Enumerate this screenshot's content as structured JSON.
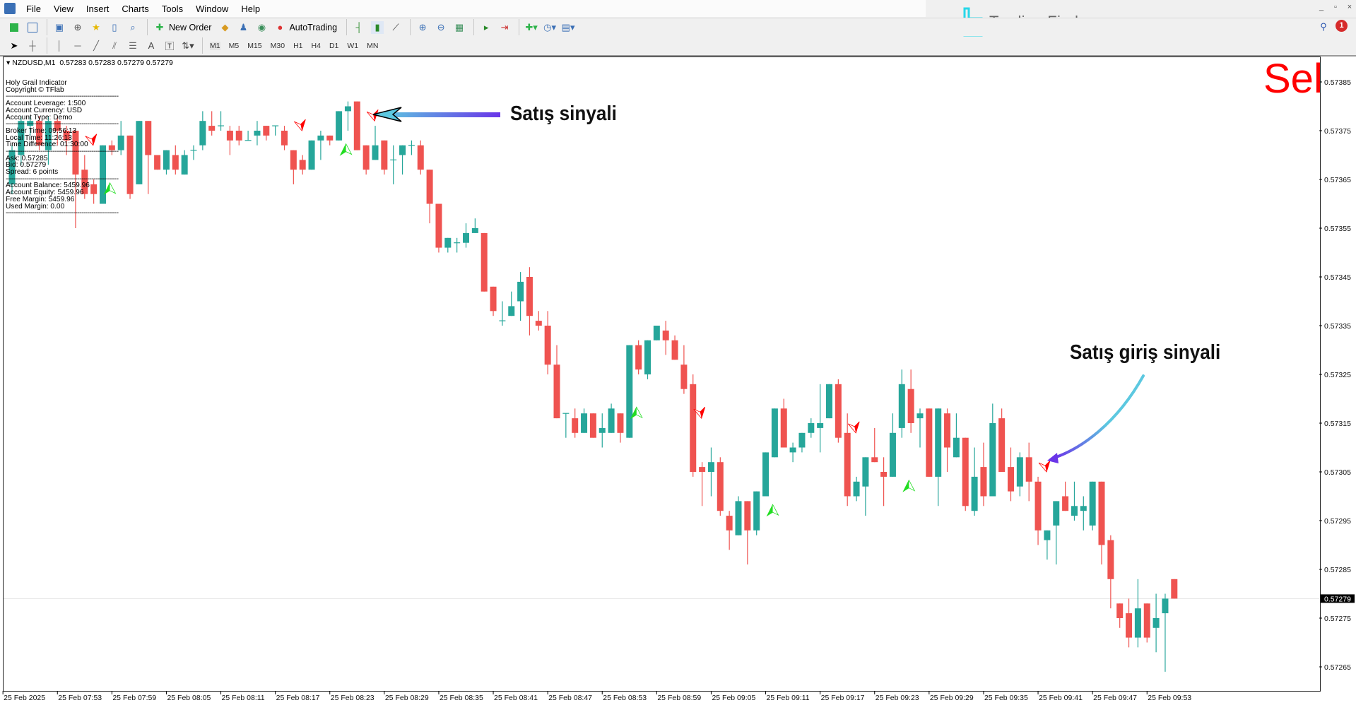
{
  "menu": [
    "File",
    "View",
    "Insert",
    "Charts",
    "Tools",
    "Window",
    "Help"
  ],
  "toolbar": {
    "new_order": "New Order",
    "auto_trading": "AutoTrading",
    "timeframes": [
      "M1",
      "M5",
      "M15",
      "M30",
      "H1",
      "H4",
      "D1",
      "W1",
      "MN"
    ]
  },
  "logo": {
    "text": "Trading Finder",
    "color": "#28d7e8"
  },
  "notifications": {
    "count": "1"
  },
  "window_controls": [
    "_",
    "▫",
    "×"
  ],
  "chart_header": {
    "symbol": "NZDUSD,M1",
    "ohlc": "0.57283 0.57283 0.57279 0.57279"
  },
  "info_panel": {
    "groups": [
      [
        "Holy Grail Indicator",
        "Copyright © TFlab"
      ],
      [
        "Account Leverage: 1:500",
        "Account Currency: USD",
        "Account Type: Demo"
      ],
      [
        "Broker Time: 09:56:13",
        "Local Time: 11:26:13",
        "Time Difference: 01:30:00"
      ],
      [
        "Ask: 0.57285",
        "Bid: 0.57279",
        "Spread: 6 points"
      ],
      [
        "Account Balance: 5459.96",
        "Account Equity: 5459.96",
        "Free Margin: 5459.96",
        "Used Margin: 0.00"
      ]
    ]
  },
  "signal_label": {
    "text": "Sel",
    "color": "#ff0000"
  },
  "annotations": {
    "sell_signal": "Satış sinyali",
    "sell_entry_signal": "Satış giriş sinyali"
  },
  "colors": {
    "bull": "#26a69a",
    "bear": "#ef5350",
    "sell_arrow": "#ff0000",
    "buy_arrow": "#22dd22",
    "arrow_start": "#5cc8e0",
    "arrow_end": "#6a35e8"
  },
  "chart_data": {
    "type": "candlestick",
    "symbol": "NZDUSD",
    "timeframe": "M1",
    "first_time": "25 Feb 07:48",
    "last_time": "25 Feb 09:56",
    "bid": "0.57279",
    "ylim": [
      0.57262,
      0.57392
    ],
    "grid": false,
    "y_ticks": [
      "0.57385",
      "0.57375",
      "0.57365",
      "0.57355",
      "0.57345",
      "0.57335",
      "0.57325",
      "0.57315",
      "0.57305",
      "0.57295",
      "0.57285",
      "0.57275",
      "0.57265"
    ],
    "x_ticks": [
      "25 Feb 2025",
      "25 Feb 07:53",
      "25 Feb 07:59",
      "25 Feb 08:05",
      "25 Feb 08:11",
      "25 Feb 08:17",
      "25 Feb 08:23",
      "25 Feb 08:29",
      "25 Feb 08:35",
      "25 Feb 08:41",
      "25 Feb 08:47",
      "25 Feb 08:53",
      "25 Feb 08:59",
      "25 Feb 09:05",
      "25 Feb 09:11",
      "25 Feb 09:17",
      "25 Feb 09:23",
      "25 Feb 09:29",
      "25 Feb 09:35",
      "25 Feb 09:41",
      "25 Feb 09:47",
      "25 Feb 09:53"
    ],
    "ohlc": [
      [
        0.57364,
        0.57372,
        0.57362,
        0.57371
      ],
      [
        0.5737,
        0.57378,
        0.57368,
        0.57377
      ],
      [
        0.57376,
        0.57378,
        0.57374,
        0.57377
      ],
      [
        0.57377,
        0.57378,
        0.57371,
        0.57372
      ],
      [
        0.57371,
        0.57378,
        0.57368,
        0.57377
      ],
      [
        0.57377,
        0.57378,
        0.57372,
        0.57375
      ],
      [
        0.57375,
        0.57376,
        0.5737,
        0.57373
      ],
      [
        0.57375,
        0.57375,
        0.57355,
        0.57366
      ],
      [
        0.57367,
        0.5737,
        0.57361,
        0.57362
      ],
      [
        0.57364,
        0.57365,
        0.5736,
        0.57362
      ],
      [
        0.5736,
        0.57372,
        0.5736,
        0.57372
      ],
      [
        0.57372,
        0.57373,
        0.5737,
        0.57371
      ],
      [
        0.57371,
        0.57377,
        0.5737,
        0.57374
      ],
      [
        0.57374,
        0.57374,
        0.57361,
        0.57362
      ],
      [
        0.57364,
        0.57377,
        0.57364,
        0.57377
      ],
      [
        0.57377,
        0.57377,
        0.57362,
        0.5737
      ],
      [
        0.5737,
        0.5737,
        0.57367,
        0.57367
      ],
      [
        0.57367,
        0.57371,
        0.57366,
        0.57371
      ],
      [
        0.5737,
        0.57372,
        0.57366,
        0.57367
      ],
      [
        0.57366,
        0.57371,
        0.57366,
        0.5737
      ],
      [
        0.57371,
        0.57372,
        0.57369,
        0.57371
      ],
      [
        0.57372,
        0.57379,
        0.57371,
        0.57377
      ],
      [
        0.57376,
        0.57379,
        0.57374,
        0.57375
      ],
      [
        0.57376,
        0.57379,
        0.57375,
        0.57376
      ],
      [
        0.57375,
        0.57376,
        0.5737,
        0.57373
      ],
      [
        0.57375,
        0.57376,
        0.57372,
        0.57373
      ],
      [
        0.57373,
        0.57375,
        0.57373,
        0.57373
      ],
      [
        0.57374,
        0.57377,
        0.57372,
        0.57375
      ],
      [
        0.57376,
        0.57376,
        0.57373,
        0.57374
      ],
      [
        0.57376,
        0.57376,
        0.57374,
        0.57376
      ],
      [
        0.57375,
        0.57376,
        0.57371,
        0.57372
      ],
      [
        0.57371,
        0.57371,
        0.57364,
        0.57367
      ],
      [
        0.57369,
        0.5737,
        0.57366,
        0.57367
      ],
      [
        0.57367,
        0.57373,
        0.57367,
        0.57373
      ],
      [
        0.57373,
        0.57375,
        0.57369,
        0.57374
      ],
      [
        0.57374,
        0.57374,
        0.57372,
        0.57373
      ],
      [
        0.57373,
        0.57379,
        0.57373,
        0.57379
      ],
      [
        0.57379,
        0.57381,
        0.57375,
        0.5738
      ],
      [
        0.57381,
        0.57381,
        0.57371,
        0.57371
      ],
      [
        0.57372,
        0.57372,
        0.57366,
        0.57367
      ],
      [
        0.57369,
        0.57376,
        0.57369,
        0.57372
      ],
      [
        0.57373,
        0.57373,
        0.57366,
        0.57367
      ],
      [
        0.57369,
        0.57372,
        0.57364,
        0.57369
      ],
      [
        0.5737,
        0.57372,
        0.57366,
        0.57372
      ],
      [
        0.57372,
        0.57373,
        0.5737,
        0.57372
      ],
      [
        0.57372,
        0.57373,
        0.57366,
        0.57367
      ],
      [
        0.57367,
        0.57367,
        0.57356,
        0.5736
      ],
      [
        0.5736,
        0.5736,
        0.5735,
        0.57351
      ],
      [
        0.57351,
        0.57353,
        0.5735,
        0.57353
      ],
      [
        0.57352,
        0.57353,
        0.5735,
        0.57352
      ],
      [
        0.57352,
        0.57356,
        0.57351,
        0.57354
      ],
      [
        0.57354,
        0.57357,
        0.57354,
        0.57355
      ],
      [
        0.57354,
        0.57354,
        0.57342,
        0.57342
      ],
      [
        0.57343,
        0.57343,
        0.57337,
        0.57338
      ],
      [
        0.57336,
        0.5734,
        0.57335,
        0.57336
      ],
      [
        0.57337,
        0.57342,
        0.57337,
        0.57339
      ],
      [
        0.5734,
        0.57346,
        0.57336,
        0.57344
      ],
      [
        0.57345,
        0.57347,
        0.57333,
        0.57337
      ],
      [
        0.57336,
        0.57338,
        0.57334,
        0.57335
      ],
      [
        0.57335,
        0.57338,
        0.57325,
        0.57327
      ],
      [
        0.57327,
        0.57331,
        0.57316,
        0.57316
      ],
      [
        0.57317,
        0.57317,
        0.57312,
        0.57317
      ],
      [
        0.57316,
        0.57318,
        0.57312,
        0.57313
      ],
      [
        0.57313,
        0.57318,
        0.57313,
        0.57317
      ],
      [
        0.57317,
        0.57317,
        0.57312,
        0.57312
      ],
      [
        0.57313,
        0.57317,
        0.5731,
        0.57314
      ],
      [
        0.57313,
        0.57319,
        0.57313,
        0.57318
      ],
      [
        0.57317,
        0.57317,
        0.57311,
        0.57313
      ],
      [
        0.57312,
        0.57331,
        0.57312,
        0.57331
      ],
      [
        0.57331,
        0.57332,
        0.57325,
        0.57326
      ],
      [
        0.57325,
        0.57332,
        0.57324,
        0.57332
      ],
      [
        0.57332,
        0.57335,
        0.57332,
        0.57335
      ],
      [
        0.57334,
        0.57336,
        0.57329,
        0.57332
      ],
      [
        0.57332,
        0.57333,
        0.57328,
        0.57328
      ],
      [
        0.57327,
        0.57331,
        0.57321,
        0.57322
      ],
      [
        0.57323,
        0.57325,
        0.57304,
        0.57305
      ],
      [
        0.57306,
        0.57307,
        0.57298,
        0.57305
      ],
      [
        0.57305,
        0.5731,
        0.573,
        0.57307
      ],
      [
        0.57307,
        0.57308,
        0.57296,
        0.57297
      ],
      [
        0.57296,
        0.57297,
        0.57289,
        0.57293
      ],
      [
        0.57292,
        0.573,
        0.57292,
        0.57299
      ],
      [
        0.57299,
        0.57299,
        0.57286,
        0.57293
      ],
      [
        0.57293,
        0.57301,
        0.57292,
        0.57301
      ],
      [
        0.573,
        0.57309,
        0.573,
        0.57309
      ],
      [
        0.57308,
        0.57318,
        0.57308,
        0.57318
      ],
      [
        0.57318,
        0.5732,
        0.5731,
        0.5731
      ],
      [
        0.57309,
        0.57311,
        0.57307,
        0.5731
      ],
      [
        0.5731,
        0.57313,
        0.57309,
        0.57313
      ],
      [
        0.57313,
        0.57316,
        0.57312,
        0.57315
      ],
      [
        0.57314,
        0.57323,
        0.57309,
        0.57315
      ],
      [
        0.57316,
        0.57323,
        0.57316,
        0.57323
      ],
      [
        0.57323,
        0.57324,
        0.57311,
        0.57312
      ],
      [
        0.57313,
        0.57317,
        0.57298,
        0.573
      ],
      [
        0.573,
        0.57304,
        0.57299,
        0.57303
      ],
      [
        0.57302,
        0.57308,
        0.57296,
        0.57308
      ],
      [
        0.57308,
        0.57314,
        0.57307,
        0.57307
      ],
      [
        0.57305,
        0.57308,
        0.57298,
        0.57304
      ],
      [
        0.57304,
        0.57317,
        0.57304,
        0.57313
      ],
      [
        0.57314,
        0.57326,
        0.57312,
        0.57323
      ],
      [
        0.57322,
        0.57326,
        0.57313,
        0.57315
      ],
      [
        0.57316,
        0.57318,
        0.5731,
        0.57317
      ],
      [
        0.57318,
        0.57318,
        0.57304,
        0.57304
      ],
      [
        0.57304,
        0.57318,
        0.57298,
        0.57318
      ],
      [
        0.57317,
        0.57318,
        0.57305,
        0.5731
      ],
      [
        0.57308,
        0.57317,
        0.57308,
        0.57312
      ],
      [
        0.57312,
        0.57312,
        0.57297,
        0.57298
      ],
      [
        0.57297,
        0.5731,
        0.57296,
        0.57304
      ],
      [
        0.57306,
        0.57311,
        0.57298,
        0.573
      ],
      [
        0.573,
        0.57319,
        0.573,
        0.57315
      ],
      [
        0.57316,
        0.57318,
        0.57305,
        0.57305
      ],
      [
        0.57306,
        0.5731,
        0.57299,
        0.57301
      ],
      [
        0.57302,
        0.57309,
        0.573,
        0.57308
      ],
      [
        0.57308,
        0.57311,
        0.57299,
        0.57303
      ],
      [
        0.57303,
        0.57304,
        0.5729,
        0.57293
      ],
      [
        0.57291,
        0.57293,
        0.57287,
        0.57293
      ],
      [
        0.57294,
        0.57299,
        0.57286,
        0.57299
      ],
      [
        0.573,
        0.57303,
        0.57297,
        0.57297
      ],
      [
        0.57296,
        0.57303,
        0.57295,
        0.57298
      ],
      [
        0.57297,
        0.573,
        0.57293,
        0.57298
      ],
      [
        0.57294,
        0.57303,
        0.57293,
        0.57303
      ],
      [
        0.57303,
        0.57303,
        0.57286,
        0.5729
      ],
      [
        0.57291,
        0.57292,
        0.57277,
        0.57283
      ],
      [
        0.57278,
        0.57278,
        0.57273,
        0.57275
      ],
      [
        0.57276,
        0.57279,
        0.57269,
        0.57271
      ],
      [
        0.57271,
        0.57283,
        0.57269,
        0.57277
      ],
      [
        0.57278,
        0.57278,
        0.5727,
        0.57271
      ],
      [
        0.57273,
        0.5728,
        0.57268,
        0.57275
      ],
      [
        0.57276,
        0.5728,
        0.57264,
        0.57279
      ],
      [
        0.57283,
        0.57283,
        0.57279,
        0.57279
      ]
    ],
    "sell_signals": [
      {
        "candle": 8,
        "price": 0.57373
      },
      {
        "candle": 31,
        "price": 0.57376
      },
      {
        "candle": 39,
        "price": 0.57378
      },
      {
        "candle": 75,
        "price": 0.57317
      },
      {
        "candle": 92,
        "price": 0.57314
      },
      {
        "candle": 113,
        "price": 0.57306
      }
    ],
    "buy_signals": [
      {
        "candle": 10,
        "price": 0.57363
      },
      {
        "candle": 36,
        "price": 0.57371
      },
      {
        "candle": 68,
        "price": 0.57317
      },
      {
        "candle": 83,
        "price": 0.57297
      },
      {
        "candle": 98,
        "price": 0.57302
      }
    ],
    "annotated_signals": {
      "sell_signal_candle": 39,
      "sell_entry_signal_candle": 113
    }
  }
}
